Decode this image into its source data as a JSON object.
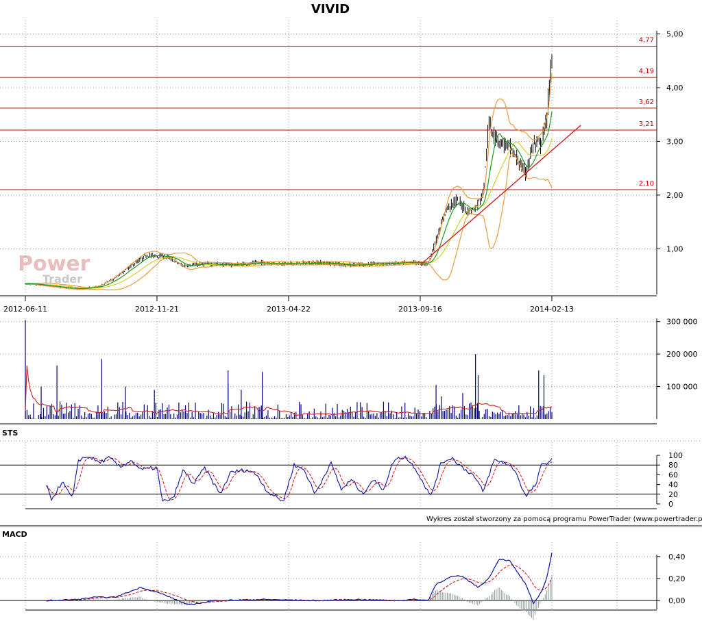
{
  "title": "VIVID",
  "watermark": {
    "line1": "Power",
    "line2": "Trader"
  },
  "credit": "Wykres został stworzony za pomocą programu PowerTrader (www.powertrader.pl)",
  "colors": {
    "candle": "#000000",
    "sma_short": "#1a9a1a",
    "sma_long": "#d8d020",
    "bollinger": "#e89a40",
    "levels": "#c00000",
    "trendline": "#d02020",
    "volume": "#00007a",
    "volume_avg": "#d02020",
    "sts_k": "#1010a0",
    "sts_d": "#d02020",
    "macd": "#1010a0",
    "macd_signal": "#d02020",
    "macd_hist": "#8a9a9a"
  },
  "chart_data": [
    {
      "type": "line",
      "name": "price",
      "title": "VIVID",
      "x_ticks": [
        "2012-06-11",
        "2012-11-21",
        "2013-04-22",
        "2013-09-16",
        "2014-02-13"
      ],
      "y_ticks": [
        "1,00",
        "2,00",
        "3,00",
        "4,00",
        "5,00"
      ],
      "ylim": [
        0.15,
        5.25
      ],
      "grid": true,
      "levels": [
        {
          "value": 4.77,
          "label": "4,77"
        },
        {
          "value": 4.19,
          "label": "4,19"
        },
        {
          "value": 3.62,
          "label": "3,62"
        },
        {
          "value": 3.21,
          "label": "3,21"
        },
        {
          "value": 2.1,
          "label": "2,10"
        }
      ],
      "trendline": [
        {
          "x": "2013-09-16",
          "y": 0.7
        },
        {
          "x": "2014-03-15",
          "y": 3.3
        }
      ],
      "close_keypoints": [
        {
          "t": 0.0,
          "v": 0.35
        },
        {
          "t": 0.1,
          "v": 0.25
        },
        {
          "t": 0.14,
          "v": 0.3
        },
        {
          "t": 0.17,
          "v": 0.45
        },
        {
          "t": 0.19,
          "v": 0.6
        },
        {
          "t": 0.23,
          "v": 0.88
        },
        {
          "t": 0.27,
          "v": 0.85
        },
        {
          "t": 0.3,
          "v": 0.68
        },
        {
          "t": 0.34,
          "v": 0.72
        },
        {
          "t": 0.4,
          "v": 0.7
        },
        {
          "t": 0.44,
          "v": 0.74
        },
        {
          "t": 0.5,
          "v": 0.72
        },
        {
          "t": 0.56,
          "v": 0.74
        },
        {
          "t": 0.62,
          "v": 0.7
        },
        {
          "t": 0.68,
          "v": 0.72
        },
        {
          "t": 0.74,
          "v": 0.74
        },
        {
          "t": 0.765,
          "v": 0.72
        },
        {
          "t": 0.785,
          "v": 1.3
        },
        {
          "t": 0.8,
          "v": 1.75
        },
        {
          "t": 0.82,
          "v": 1.9
        },
        {
          "t": 0.84,
          "v": 1.7
        },
        {
          "t": 0.855,
          "v": 1.75
        },
        {
          "t": 0.87,
          "v": 2.05
        },
        {
          "t": 0.88,
          "v": 3.3
        },
        {
          "t": 0.9,
          "v": 3.0
        },
        {
          "t": 0.92,
          "v": 2.9
        },
        {
          "t": 0.935,
          "v": 2.65
        },
        {
          "t": 0.95,
          "v": 2.4
        },
        {
          "t": 0.965,
          "v": 2.95
        },
        {
          "t": 0.98,
          "v": 2.95
        },
        {
          "t": 0.99,
          "v": 3.4
        },
        {
          "t": 1.0,
          "v": 4.5
        }
      ]
    },
    {
      "type": "bar",
      "name": "volume",
      "y_ticks": [
        "100 000",
        "200 000",
        "300 000"
      ],
      "ylim": [
        0,
        310000
      ],
      "spikes": [
        {
          "t": 0.0,
          "v": 305000
        },
        {
          "t": 0.03,
          "v": 100000
        },
        {
          "t": 0.06,
          "v": 165000
        },
        {
          "t": 0.145,
          "v": 185000
        },
        {
          "t": 0.19,
          "v": 100000
        },
        {
          "t": 0.245,
          "v": 90000
        },
        {
          "t": 0.385,
          "v": 110000
        },
        {
          "t": 0.385,
          "v": 150000
        },
        {
          "t": 0.41,
          "v": 90000
        },
        {
          "t": 0.45,
          "v": 145000
        },
        {
          "t": 0.78,
          "v": 105000
        },
        {
          "t": 0.855,
          "v": 200000
        },
        {
          "t": 0.86,
          "v": 135000
        },
        {
          "t": 0.975,
          "v": 150000
        },
        {
          "t": 0.985,
          "v": 135000
        }
      ]
    },
    {
      "type": "line",
      "name": "stochastic",
      "label": "STS",
      "y_ticks": [
        "0",
        "20",
        "40",
        "60",
        "80",
        "100"
      ],
      "ylim": [
        0,
        100
      ],
      "ref_lines": [
        20,
        80
      ],
      "k_keypoints": [
        {
          "t": 0.04,
          "v": 35
        },
        {
          "t": 0.05,
          "v": 10
        },
        {
          "t": 0.07,
          "v": 45
        },
        {
          "t": 0.09,
          "v": 10
        },
        {
          "t": 0.1,
          "v": 90
        },
        {
          "t": 0.12,
          "v": 98
        },
        {
          "t": 0.14,
          "v": 85
        },
        {
          "t": 0.16,
          "v": 95
        },
        {
          "t": 0.18,
          "v": 75
        },
        {
          "t": 0.2,
          "v": 90
        },
        {
          "t": 0.22,
          "v": 70
        },
        {
          "t": 0.25,
          "v": 75
        },
        {
          "t": 0.26,
          "v": 5
        },
        {
          "t": 0.28,
          "v": 10
        },
        {
          "t": 0.3,
          "v": 70
        },
        {
          "t": 0.32,
          "v": 40
        },
        {
          "t": 0.34,
          "v": 75
        },
        {
          "t": 0.37,
          "v": 20
        },
        {
          "t": 0.39,
          "v": 65
        },
        {
          "t": 0.42,
          "v": 70
        },
        {
          "t": 0.44,
          "v": 60
        },
        {
          "t": 0.46,
          "v": 25
        },
        {
          "t": 0.49,
          "v": 5
        },
        {
          "t": 0.51,
          "v": 80
        },
        {
          "t": 0.53,
          "v": 70
        },
        {
          "t": 0.55,
          "v": 20
        },
        {
          "t": 0.58,
          "v": 85
        },
        {
          "t": 0.6,
          "v": 30
        },
        {
          "t": 0.62,
          "v": 50
        },
        {
          "t": 0.64,
          "v": 20
        },
        {
          "t": 0.66,
          "v": 50
        },
        {
          "t": 0.68,
          "v": 30
        },
        {
          "t": 0.7,
          "v": 90
        },
        {
          "t": 0.72,
          "v": 98
        },
        {
          "t": 0.74,
          "v": 75
        },
        {
          "t": 0.77,
          "v": 15
        },
        {
          "t": 0.79,
          "v": 85
        },
        {
          "t": 0.81,
          "v": 95
        },
        {
          "t": 0.83,
          "v": 75
        },
        {
          "t": 0.85,
          "v": 60
        },
        {
          "t": 0.87,
          "v": 25
        },
        {
          "t": 0.89,
          "v": 90
        },
        {
          "t": 0.91,
          "v": 85
        },
        {
          "t": 0.93,
          "v": 70
        },
        {
          "t": 0.95,
          "v": 15
        },
        {
          "t": 0.97,
          "v": 40
        },
        {
          "t": 0.98,
          "v": 80
        },
        {
          "t": 1.0,
          "v": 90
        }
      ]
    },
    {
      "type": "line",
      "name": "macd",
      "label": "MACD",
      "y_ticks": [
        "0,00",
        "0,20",
        "0,40"
      ],
      "ylim": [
        -0.08,
        0.48
      ],
      "macd_keypoints": [
        {
          "t": 0.04,
          "v": 0.0
        },
        {
          "t": 0.1,
          "v": 0.01
        },
        {
          "t": 0.13,
          "v": 0.03
        },
        {
          "t": 0.17,
          "v": 0.03
        },
        {
          "t": 0.22,
          "v": 0.12
        },
        {
          "t": 0.26,
          "v": 0.06
        },
        {
          "t": 0.31,
          "v": -0.04
        },
        {
          "t": 0.36,
          "v": 0.0
        },
        {
          "t": 0.45,
          "v": 0.01
        },
        {
          "t": 0.55,
          "v": 0.0
        },
        {
          "t": 0.63,
          "v": 0.01
        },
        {
          "t": 0.7,
          "v": 0.0
        },
        {
          "t": 0.74,
          "v": 0.01
        },
        {
          "t": 0.765,
          "v": 0.0
        },
        {
          "t": 0.78,
          "v": 0.15
        },
        {
          "t": 0.81,
          "v": 0.22
        },
        {
          "t": 0.83,
          "v": 0.22
        },
        {
          "t": 0.86,
          "v": 0.12
        },
        {
          "t": 0.88,
          "v": 0.2
        },
        {
          "t": 0.9,
          "v": 0.38
        },
        {
          "t": 0.92,
          "v": 0.36
        },
        {
          "t": 0.95,
          "v": 0.15
        },
        {
          "t": 0.965,
          "v": -0.03
        },
        {
          "t": 0.98,
          "v": 0.08
        },
        {
          "t": 0.99,
          "v": 0.2
        },
        {
          "t": 1.0,
          "v": 0.43
        }
      ]
    }
  ]
}
